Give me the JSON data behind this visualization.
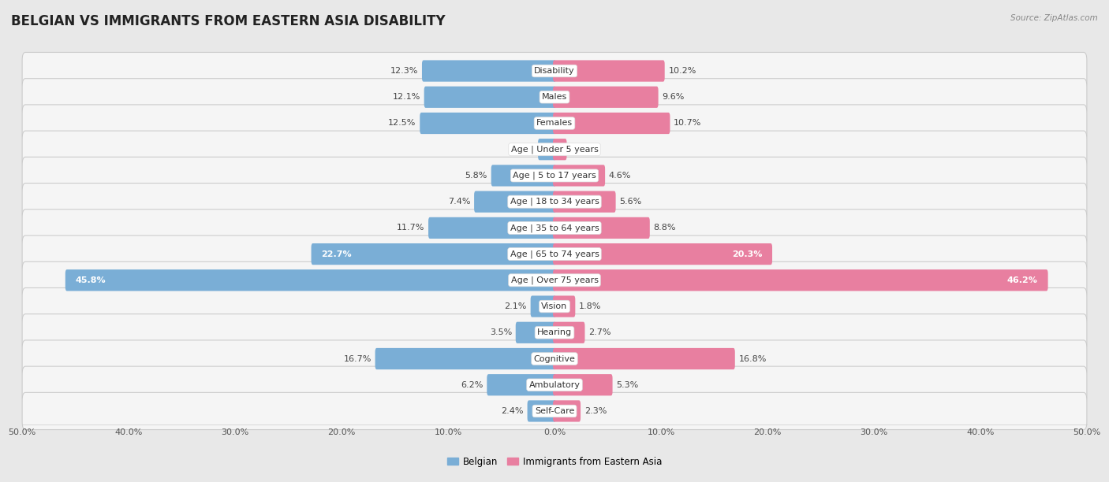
{
  "title": "BELGIAN VS IMMIGRANTS FROM EASTERN ASIA DISABILITY",
  "source": "Source: ZipAtlas.com",
  "categories": [
    "Disability",
    "Males",
    "Females",
    "Age | Under 5 years",
    "Age | 5 to 17 years",
    "Age | 18 to 34 years",
    "Age | 35 to 64 years",
    "Age | 65 to 74 years",
    "Age | Over 75 years",
    "Vision",
    "Hearing",
    "Cognitive",
    "Ambulatory",
    "Self-Care"
  ],
  "belgian": [
    12.3,
    12.1,
    12.5,
    1.4,
    5.8,
    7.4,
    11.7,
    22.7,
    45.8,
    2.1,
    3.5,
    16.7,
    6.2,
    2.4
  ],
  "immigrants": [
    10.2,
    9.6,
    10.7,
    1.0,
    4.6,
    5.6,
    8.8,
    20.3,
    46.2,
    1.8,
    2.7,
    16.8,
    5.3,
    2.3
  ],
  "belgian_color": "#7aaed6",
  "immigrant_color": "#e87fa0",
  "axis_max": 50.0,
  "background_color": "#e8e8e8",
  "row_bg_color": "#f5f5f5",
  "bar_bg_color": "#ffffff",
  "title_fontsize": 12,
  "label_fontsize": 8,
  "tick_fontsize": 8,
  "legend_belgian": "Belgian",
  "legend_immigrant": "Immigrants from Eastern Asia"
}
